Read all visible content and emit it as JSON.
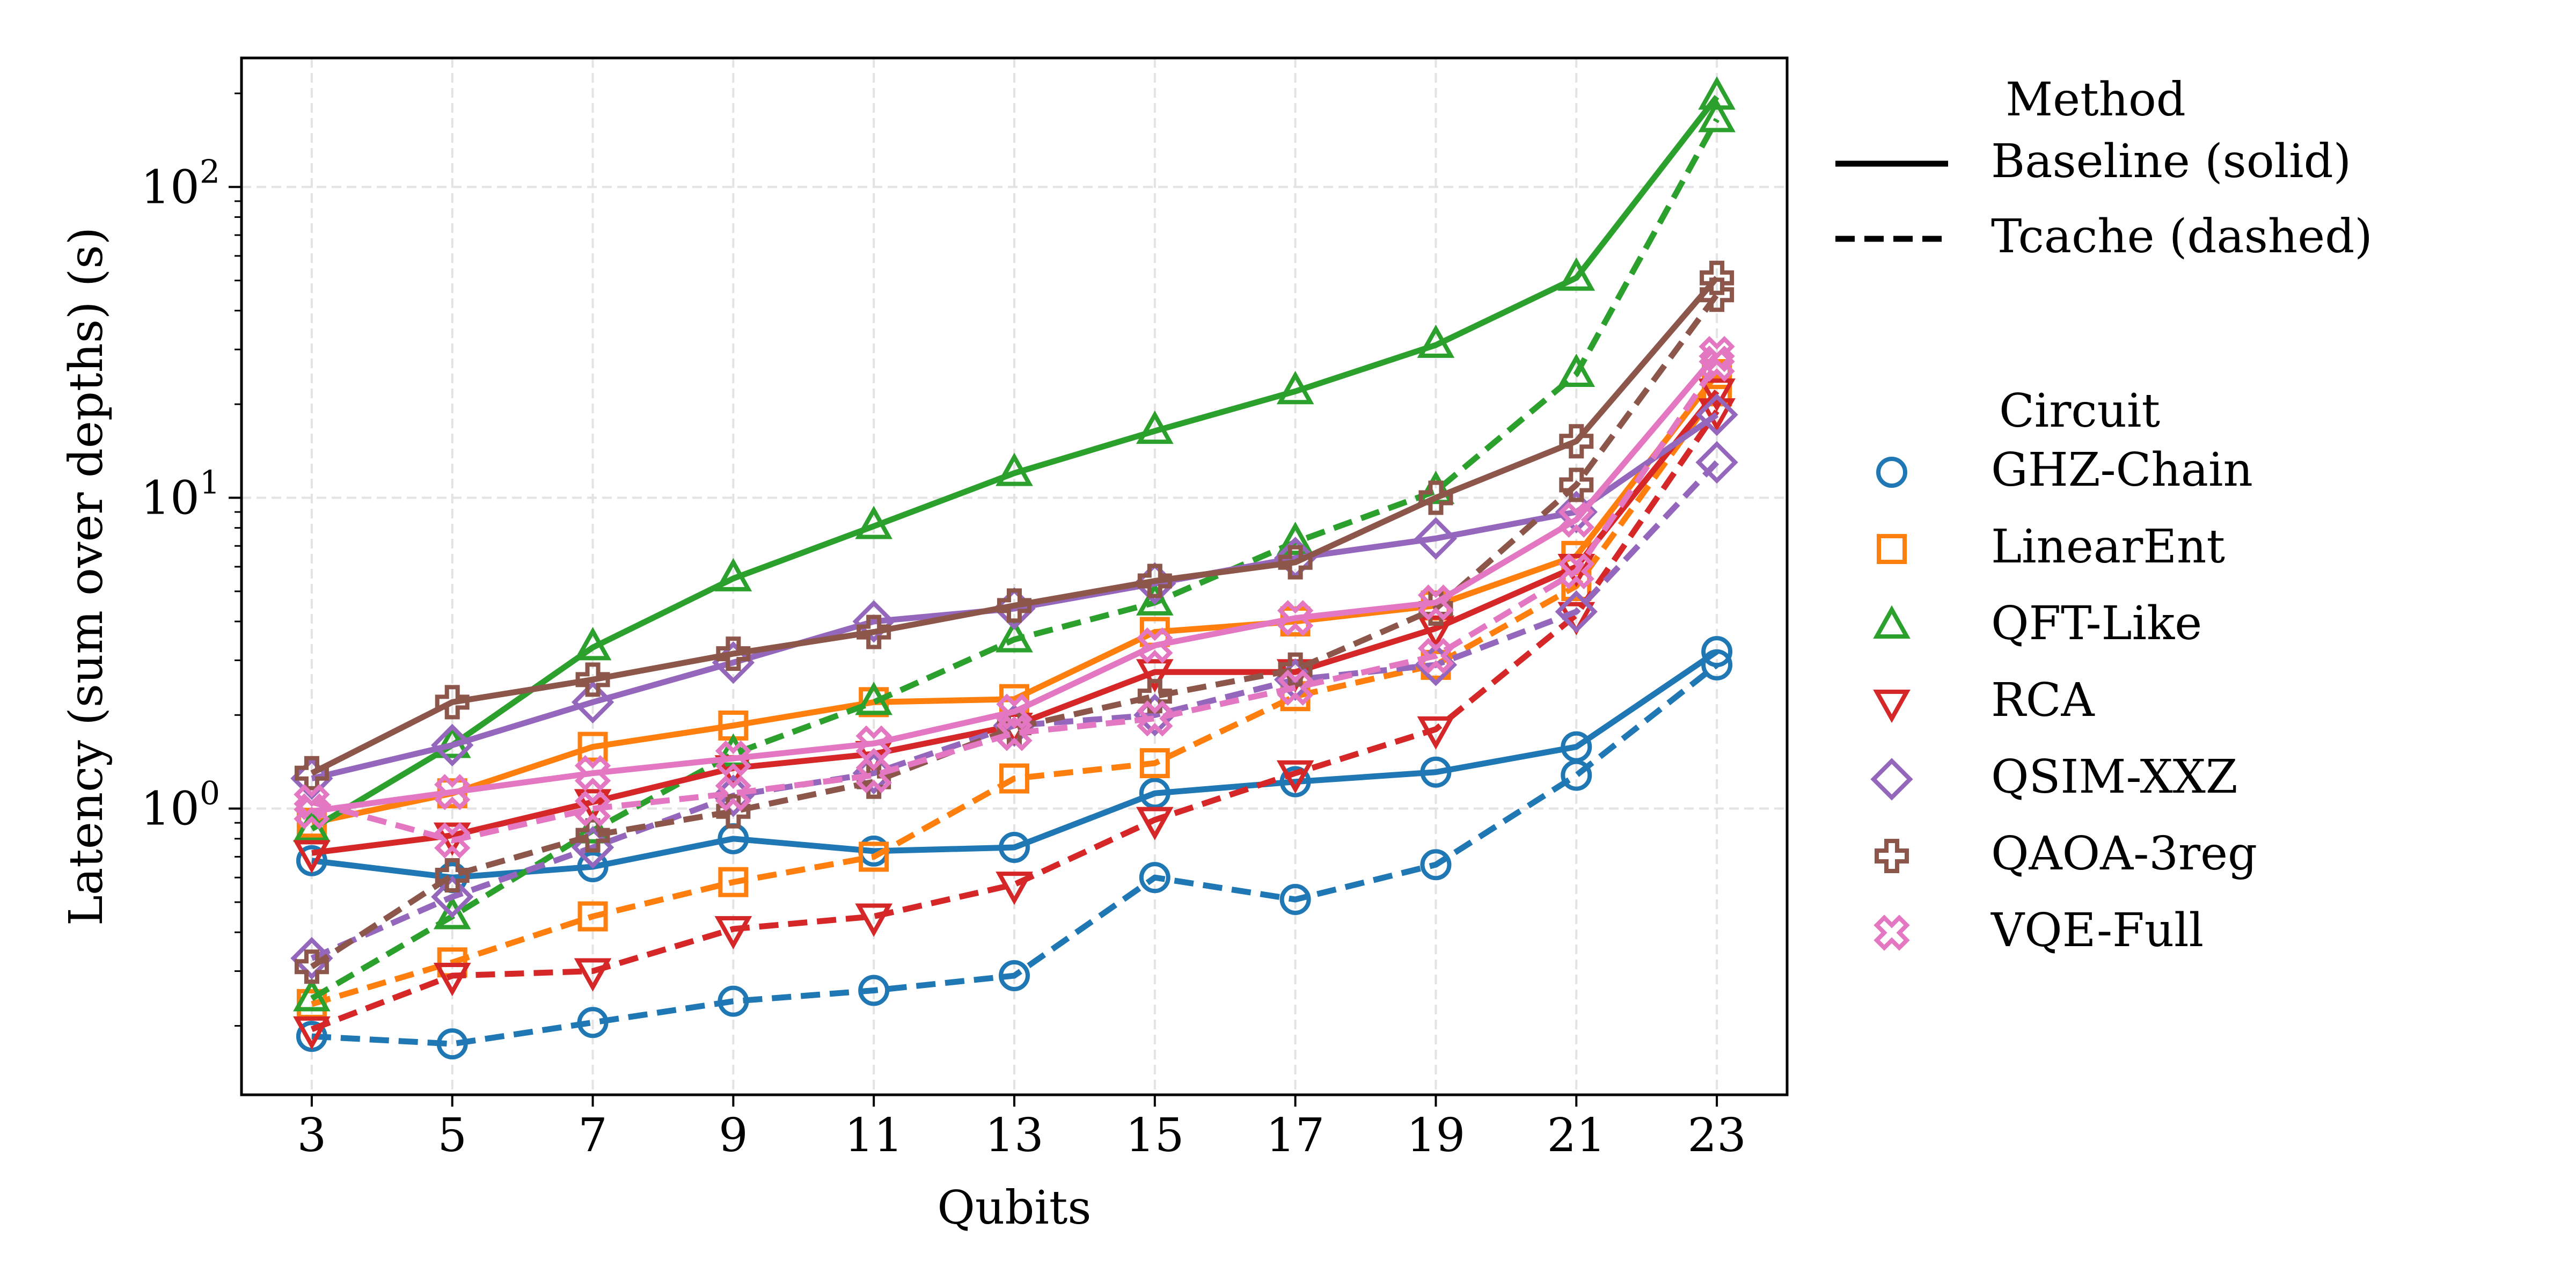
{
  "chart_data": {
    "type": "line",
    "title": "",
    "xlabel": "Qubits",
    "ylabel": "Latency (sum over depths) (s)",
    "yscale": "log",
    "xlim": [
      2,
      24
    ],
    "ylim": [
      0.12,
      260
    ],
    "grid": true,
    "x": [
      3,
      5,
      7,
      9,
      11,
      13,
      15,
      17,
      19,
      21,
      23
    ],
    "x_ticks": [
      "3",
      "5",
      "7",
      "9",
      "11",
      "13",
      "15",
      "17",
      "19",
      "21",
      "23"
    ],
    "y_ticks": [
      {
        "value": 1,
        "base": "10",
        "exp": "0"
      },
      {
        "value": 10,
        "base": "10",
        "exp": "1"
      },
      {
        "value": 100,
        "base": "10",
        "exp": "2"
      }
    ],
    "legend": {
      "placement": "outside-right",
      "method_title": "Method",
      "methods": [
        {
          "label": "Baseline (solid)",
          "dash": "solid"
        },
        {
          "label": "Tcache (dashed)",
          "dash": "dashed"
        }
      ],
      "circuit_title": "Circuit"
    },
    "series": [
      {
        "name": "GHZ-Chain",
        "color": "#1f77b4",
        "marker": "circle",
        "baseline": [
          0.68,
          0.6,
          0.65,
          0.8,
          0.73,
          0.75,
          1.12,
          1.22,
          1.31,
          1.58,
          3.2
        ],
        "tcache": [
          0.185,
          0.175,
          0.205,
          0.24,
          0.26,
          0.29,
          0.6,
          0.51,
          0.66,
          1.28,
          2.9
        ]
      },
      {
        "name": "LinearEnt",
        "color": "#ff7f0e",
        "marker": "square",
        "baseline": [
          0.9,
          1.12,
          1.58,
          1.85,
          2.2,
          2.25,
          3.7,
          4.0,
          4.5,
          6.5,
          25.0
        ],
        "tcache": [
          0.235,
          0.32,
          0.45,
          0.58,
          0.7,
          1.25,
          1.4,
          2.3,
          2.9,
          5.2,
          22.0
        ]
      },
      {
        "name": "QFT-Like",
        "color": "#2ca02c",
        "marker": "triangle-up",
        "baseline": [
          0.86,
          1.6,
          3.3,
          5.5,
          8.1,
          12.0,
          16.4,
          22.0,
          31.0,
          51.0,
          195.0
        ],
        "tcache": [
          0.245,
          0.45,
          0.85,
          1.5,
          2.2,
          3.5,
          4.6,
          7.2,
          10.5,
          25.0,
          165.0
        ]
      },
      {
        "name": "RCA",
        "color": "#d62728",
        "marker": "triangle-down",
        "baseline": [
          0.72,
          0.82,
          1.05,
          1.35,
          1.5,
          1.85,
          2.75,
          2.75,
          3.8,
          6.0,
          22.0
        ],
        "tcache": [
          0.195,
          0.29,
          0.3,
          0.41,
          0.45,
          0.57,
          0.92,
          1.3,
          1.8,
          4.2,
          19.0
        ]
      },
      {
        "name": "QSIM-XXZ",
        "color": "#9467bd",
        "marker": "diamond",
        "baseline": [
          1.25,
          1.6,
          2.2,
          2.95,
          4.0,
          4.4,
          5.3,
          6.4,
          7.4,
          9.0,
          18.5
        ],
        "tcache": [
          0.33,
          0.52,
          0.75,
          1.1,
          1.3,
          1.85,
          2.0,
          2.6,
          2.9,
          4.3,
          13.0
        ]
      },
      {
        "name": "QAOA-3reg",
        "color": "#8c564b",
        "marker": "plus",
        "baseline": [
          1.3,
          2.2,
          2.6,
          3.15,
          3.7,
          4.5,
          5.4,
          6.2,
          10.0,
          15.2,
          51.0
        ],
        "tcache": [
          0.31,
          0.61,
          0.82,
          0.98,
          1.22,
          1.82,
          2.3,
          2.8,
          4.4,
          11.0,
          45.0
        ]
      },
      {
        "name": "VQE-Full",
        "color": "#e377c2",
        "marker": "x",
        "baseline": [
          0.98,
          1.13,
          1.3,
          1.45,
          1.62,
          2.05,
          3.35,
          4.1,
          4.6,
          8.5,
          29.0
        ],
        "tcache": [
          1.05,
          0.79,
          1.0,
          1.12,
          1.28,
          1.75,
          1.95,
          2.45,
          3.1,
          5.8,
          27.0
        ]
      }
    ]
  }
}
